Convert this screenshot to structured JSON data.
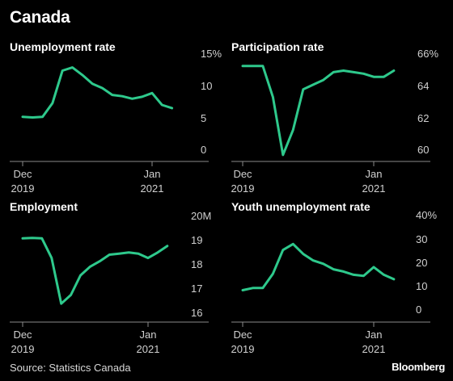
{
  "title": "Canada",
  "source": "Source: Statistics Canada",
  "brand": "Bloomberg",
  "line_color": "#2ec98c",
  "chart_data": [
    {
      "type": "line",
      "title": "Unemployment rate",
      "x": [
        "2019-12",
        "2020-01",
        "2020-02",
        "2020-03",
        "2020-04",
        "2020-05",
        "2020-06",
        "2020-07",
        "2020-08",
        "2020-09",
        "2020-10",
        "2020-11",
        "2020-12",
        "2021-01",
        "2021-02",
        "2021-03",
        "2021-04"
      ],
      "values": [
        5.6,
        5.5,
        5.6,
        7.8,
        13.0,
        13.5,
        12.3,
        10.9,
        10.2,
        9.1,
        8.9,
        8.5,
        8.8,
        9.4,
        7.5,
        7.0,
        null
      ],
      "ylim": [
        0,
        15
      ],
      "y_ticks": [
        "0",
        "5",
        "10",
        "15%"
      ],
      "x_ticks": [
        {
          "x": "2019-12",
          "top": "Dec",
          "bottom": "2019"
        },
        {
          "x": "2021-01",
          "top": "Jan",
          "bottom": "2021"
        }
      ],
      "grid": false
    },
    {
      "type": "line",
      "title": "Participation rate",
      "x": [
        "2019-12",
        "2020-01",
        "2020-02",
        "2020-03",
        "2020-04",
        "2020-05",
        "2020-06",
        "2020-07",
        "2020-08",
        "2020-09",
        "2020-10",
        "2020-11",
        "2020-12",
        "2021-01",
        "2021-02",
        "2021-03",
        "2021-04"
      ],
      "values": [
        65.5,
        65.5,
        65.5,
        63.5,
        59.8,
        61.4,
        64.0,
        64.3,
        64.6,
        65.1,
        65.2,
        65.1,
        65.0,
        64.8,
        64.8,
        65.2,
        null
      ],
      "ylim": [
        60,
        66
      ],
      "y_ticks": [
        "60",
        "62",
        "64",
        "66%"
      ],
      "x_ticks": [
        {
          "x": "2019-12",
          "top": "Dec",
          "bottom": "2019"
        },
        {
          "x": "2021-01",
          "top": "Jan",
          "bottom": "2021"
        }
      ],
      "grid": false
    },
    {
      "type": "line",
      "title": "Employment",
      "x": [
        "2019-12",
        "2020-01",
        "2020-02",
        "2020-03",
        "2020-04",
        "2020-05",
        "2020-06",
        "2020-07",
        "2020-08",
        "2020-09",
        "2020-10",
        "2020-11",
        "2020-12",
        "2021-01",
        "2021-02",
        "2021-03",
        "2021-04"
      ],
      "values": [
        19.1,
        19.12,
        19.1,
        18.2,
        16.1,
        16.5,
        17.4,
        17.8,
        18.05,
        18.35,
        18.4,
        18.45,
        18.4,
        18.2,
        18.45,
        18.75,
        null
      ],
      "ylim": [
        15.7,
        20
      ],
      "y_ticks": [
        "16",
        "17",
        "18",
        "19",
        "20M"
      ],
      "x_ticks": [
        {
          "x": "2019-12",
          "top": "Dec",
          "bottom": "2019"
        },
        {
          "x": "2021-01",
          "top": "Jan",
          "bottom": "2021"
        }
      ],
      "grid": false
    },
    {
      "type": "line",
      "title": "Youth unemployment rate",
      "x": [
        "2019-12",
        "2020-01",
        "2020-02",
        "2020-03",
        "2020-04",
        "2020-05",
        "2020-06",
        "2020-07",
        "2020-08",
        "2020-09",
        "2020-10",
        "2020-11",
        "2020-12",
        "2021-01",
        "2021-02",
        "2021-03",
        "2021-04"
      ],
      "values": [
        7.5,
        8.5,
        8.5,
        15.0,
        25.8,
        28.5,
        24.0,
        21.0,
        19.5,
        17.0,
        16.0,
        14.5,
        14.0,
        18.0,
        14.5,
        12.5,
        null
      ],
      "ylim": [
        -2.6,
        40
      ],
      "y_ticks": [
        "0",
        "10",
        "20",
        "30",
        "40%"
      ],
      "x_ticks": [
        {
          "x": "2019-12",
          "top": "Dec",
          "bottom": "2019"
        },
        {
          "x": "2021-01",
          "top": "Jan",
          "bottom": "2021"
        }
      ],
      "grid": false
    }
  ]
}
